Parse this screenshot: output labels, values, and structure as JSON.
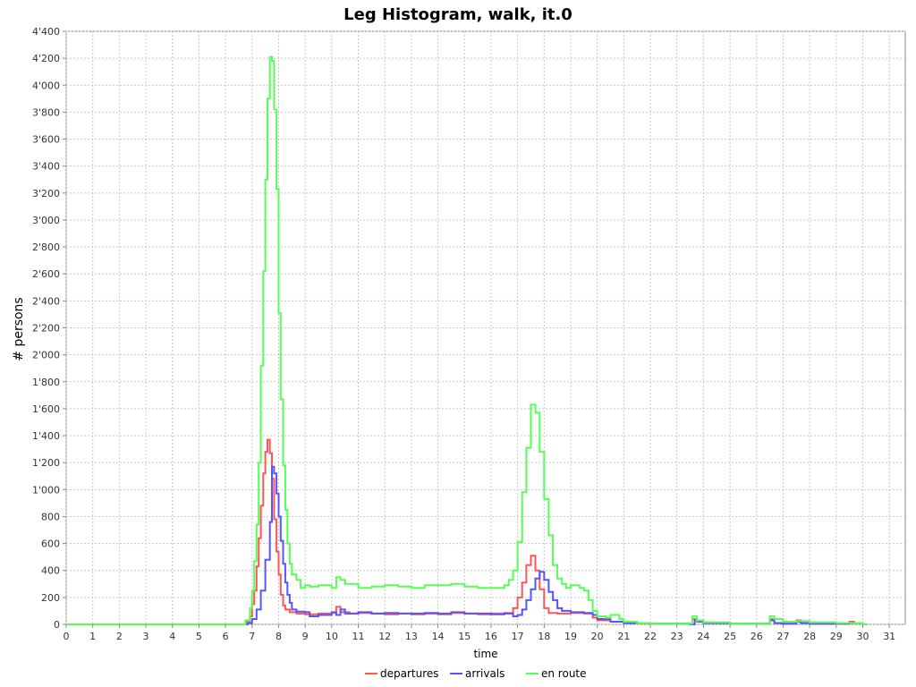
{
  "chart_data": {
    "type": "line",
    "step": true,
    "title": "Leg Histogram, walk, it.0",
    "xlabel": "time",
    "ylabel": "# persons",
    "xlim": [
      0,
      31.6
    ],
    "ylim": [
      0,
      4400
    ],
    "x_ticks": [
      "0",
      "1",
      "2",
      "3",
      "4",
      "5",
      "6",
      "7",
      "8",
      "9",
      "10",
      "11",
      "12",
      "13",
      "14",
      "15",
      "16",
      "17",
      "18",
      "19",
      "20",
      "21",
      "22",
      "23",
      "24",
      "25",
      "26",
      "27",
      "28",
      "29",
      "30",
      "31"
    ],
    "y_ticks": [
      {
        "value": 0,
        "label": "0"
      },
      {
        "value": 200,
        "label": "200"
      },
      {
        "value": 400,
        "label": "400"
      },
      {
        "value": 600,
        "label": "600"
      },
      {
        "value": 800,
        "label": "800"
      },
      {
        "value": 1000,
        "label": "1'000"
      },
      {
        "value": 1200,
        "label": "1'200"
      },
      {
        "value": 1400,
        "label": "1'400"
      },
      {
        "value": 1600,
        "label": "1'600"
      },
      {
        "value": 1800,
        "label": "1'800"
      },
      {
        "value": 2000,
        "label": "2'000"
      },
      {
        "value": 2200,
        "label": "2'200"
      },
      {
        "value": 2400,
        "label": "2'400"
      },
      {
        "value": 2600,
        "label": "2'600"
      },
      {
        "value": 2800,
        "label": "2'800"
      },
      {
        "value": 3000,
        "label": "3'000"
      },
      {
        "value": 3200,
        "label": "3'200"
      },
      {
        "value": 3400,
        "label": "3'400"
      },
      {
        "value": 3600,
        "label": "3'600"
      },
      {
        "value": 3800,
        "label": "3'800"
      },
      {
        "value": 4000,
        "label": "4'000"
      },
      {
        "value": 4200,
        "label": "4'200"
      },
      {
        "value": 4400,
        "label": "4'400"
      }
    ],
    "grid": true,
    "legend_position": "bottom",
    "series": [
      {
        "name": "departures",
        "color": "#ff5555",
        "points": [
          [
            0,
            0
          ],
          [
            6.5,
            0
          ],
          [
            6.75,
            20
          ],
          [
            6.92,
            60
          ],
          [
            7.0,
            150
          ],
          [
            7.08,
            250
          ],
          [
            7.17,
            430
          ],
          [
            7.25,
            640
          ],
          [
            7.33,
            880
          ],
          [
            7.42,
            1120
          ],
          [
            7.5,
            1280
          ],
          [
            7.58,
            1370
          ],
          [
            7.67,
            1270
          ],
          [
            7.75,
            1080
          ],
          [
            7.83,
            780
          ],
          [
            7.92,
            540
          ],
          [
            8.0,
            370
          ],
          [
            8.08,
            220
          ],
          [
            8.17,
            140
          ],
          [
            8.25,
            110
          ],
          [
            8.42,
            90
          ],
          [
            8.67,
            80
          ],
          [
            9.0,
            75
          ],
          [
            9.5,
            80
          ],
          [
            10.0,
            85
          ],
          [
            10.17,
            130
          ],
          [
            10.33,
            90
          ],
          [
            10.67,
            80
          ],
          [
            11.0,
            85
          ],
          [
            11.5,
            80
          ],
          [
            12.0,
            75
          ],
          [
            12.5,
            80
          ],
          [
            13.0,
            75
          ],
          [
            13.5,
            80
          ],
          [
            14.0,
            75
          ],
          [
            14.5,
            85
          ],
          [
            15.0,
            80
          ],
          [
            15.5,
            75
          ],
          [
            16.0,
            80
          ],
          [
            16.5,
            85
          ],
          [
            16.83,
            120
          ],
          [
            17.0,
            200
          ],
          [
            17.17,
            310
          ],
          [
            17.33,
            440
          ],
          [
            17.5,
            510
          ],
          [
            17.67,
            400
          ],
          [
            17.83,
            260
          ],
          [
            18.0,
            120
          ],
          [
            18.17,
            85
          ],
          [
            18.5,
            80
          ],
          [
            19.0,
            85
          ],
          [
            19.5,
            80
          ],
          [
            19.83,
            50
          ],
          [
            20.0,
            30
          ],
          [
            20.5,
            20
          ],
          [
            21.0,
            10
          ],
          [
            22.0,
            5
          ],
          [
            23.5,
            0
          ],
          [
            23.58,
            40
          ],
          [
            23.75,
            20
          ],
          [
            24.0,
            10
          ],
          [
            25.0,
            5
          ],
          [
            26.0,
            5
          ],
          [
            26.5,
            40
          ],
          [
            26.67,
            10
          ],
          [
            27.0,
            5
          ],
          [
            27.5,
            30
          ],
          [
            27.67,
            10
          ],
          [
            28.0,
            5
          ],
          [
            29.0,
            5
          ],
          [
            29.5,
            20
          ],
          [
            29.67,
            10
          ],
          [
            30.0,
            0
          ],
          [
            30.17,
            0
          ]
        ]
      },
      {
        "name": "arrivals",
        "color": "#5555ff",
        "points": [
          [
            0,
            0
          ],
          [
            6.5,
            0
          ],
          [
            6.83,
            10
          ],
          [
            7.0,
            40
          ],
          [
            7.17,
            110
          ],
          [
            7.33,
            250
          ],
          [
            7.5,
            480
          ],
          [
            7.67,
            760
          ],
          [
            7.75,
            1170
          ],
          [
            7.83,
            1120
          ],
          [
            7.92,
            970
          ],
          [
            8.0,
            800
          ],
          [
            8.08,
            620
          ],
          [
            8.17,
            450
          ],
          [
            8.25,
            310
          ],
          [
            8.33,
            220
          ],
          [
            8.42,
            160
          ],
          [
            8.5,
            110
          ],
          [
            8.67,
            95
          ],
          [
            9.0,
            90
          ],
          [
            9.17,
            60
          ],
          [
            9.5,
            70
          ],
          [
            10.0,
            90
          ],
          [
            10.17,
            70
          ],
          [
            10.33,
            110
          ],
          [
            10.5,
            80
          ],
          [
            11.0,
            90
          ],
          [
            11.5,
            80
          ],
          [
            12.0,
            85
          ],
          [
            12.5,
            80
          ],
          [
            13.0,
            80
          ],
          [
            13.5,
            85
          ],
          [
            14.0,
            80
          ],
          [
            14.5,
            90
          ],
          [
            15.0,
            80
          ],
          [
            15.5,
            80
          ],
          [
            16.0,
            75
          ],
          [
            16.5,
            80
          ],
          [
            16.83,
            60
          ],
          [
            17.0,
            70
          ],
          [
            17.17,
            110
          ],
          [
            17.33,
            180
          ],
          [
            17.5,
            260
          ],
          [
            17.67,
            340
          ],
          [
            17.83,
            390
          ],
          [
            18.0,
            330
          ],
          [
            18.17,
            240
          ],
          [
            18.33,
            180
          ],
          [
            18.5,
            120
          ],
          [
            18.67,
            100
          ],
          [
            19.0,
            90
          ],
          [
            19.5,
            85
          ],
          [
            19.83,
            70
          ],
          [
            20.0,
            40
          ],
          [
            20.5,
            20
          ],
          [
            21.0,
            10
          ],
          [
            22.0,
            5
          ],
          [
            23.5,
            0
          ],
          [
            23.67,
            30
          ],
          [
            23.83,
            20
          ],
          [
            24.0,
            10
          ],
          [
            25.0,
            5
          ],
          [
            26.0,
            5
          ],
          [
            26.5,
            30
          ],
          [
            26.67,
            10
          ],
          [
            27.0,
            5
          ],
          [
            27.5,
            20
          ],
          [
            27.67,
            10
          ],
          [
            28.0,
            5
          ],
          [
            29.0,
            5
          ],
          [
            29.5,
            10
          ],
          [
            30.0,
            0
          ],
          [
            30.17,
            0
          ]
        ]
      },
      {
        "name": "en route",
        "color": "#55ff55",
        "points": [
          [
            0,
            0
          ],
          [
            6.5,
            0
          ],
          [
            6.75,
            30
          ],
          [
            6.92,
            120
          ],
          [
            7.0,
            250
          ],
          [
            7.08,
            470
          ],
          [
            7.17,
            740
          ],
          [
            7.25,
            1200
          ],
          [
            7.33,
            1920
          ],
          [
            7.42,
            2620
          ],
          [
            7.5,
            3300
          ],
          [
            7.58,
            3900
          ],
          [
            7.67,
            4210
          ],
          [
            7.75,
            4180
          ],
          [
            7.83,
            3820
          ],
          [
            7.92,
            3230
          ],
          [
            8.0,
            2310
          ],
          [
            8.08,
            1670
          ],
          [
            8.17,
            1180
          ],
          [
            8.25,
            850
          ],
          [
            8.33,
            600
          ],
          [
            8.42,
            450
          ],
          [
            8.5,
            370
          ],
          [
            8.67,
            330
          ],
          [
            8.83,
            270
          ],
          [
            9.0,
            290
          ],
          [
            9.17,
            280
          ],
          [
            9.5,
            290
          ],
          [
            10.0,
            270
          ],
          [
            10.17,
            350
          ],
          [
            10.33,
            330
          ],
          [
            10.5,
            300
          ],
          [
            11.0,
            270
          ],
          [
            11.5,
            280
          ],
          [
            12.0,
            290
          ],
          [
            12.5,
            280
          ],
          [
            13.0,
            270
          ],
          [
            13.5,
            290
          ],
          [
            14.0,
            290
          ],
          [
            14.5,
            300
          ],
          [
            15.0,
            280
          ],
          [
            15.5,
            270
          ],
          [
            16.0,
            270
          ],
          [
            16.5,
            290
          ],
          [
            16.67,
            330
          ],
          [
            16.83,
            400
          ],
          [
            17.0,
            610
          ],
          [
            17.17,
            980
          ],
          [
            17.33,
            1310
          ],
          [
            17.5,
            1630
          ],
          [
            17.67,
            1570
          ],
          [
            17.83,
            1280
          ],
          [
            18.0,
            930
          ],
          [
            18.17,
            660
          ],
          [
            18.33,
            440
          ],
          [
            18.5,
            340
          ],
          [
            18.67,
            300
          ],
          [
            18.83,
            270
          ],
          [
            19.0,
            290
          ],
          [
            19.33,
            270
          ],
          [
            19.5,
            250
          ],
          [
            19.67,
            180
          ],
          [
            19.83,
            100
          ],
          [
            20.0,
            60
          ],
          [
            20.33,
            50
          ],
          [
            20.5,
            70
          ],
          [
            20.83,
            40
          ],
          [
            21.0,
            20
          ],
          [
            21.5,
            10
          ],
          [
            22.0,
            5
          ],
          [
            23.5,
            5
          ],
          [
            23.58,
            60
          ],
          [
            23.75,
            30
          ],
          [
            24.0,
            15
          ],
          [
            25.0,
            5
          ],
          [
            26.0,
            5
          ],
          [
            26.5,
            60
          ],
          [
            26.67,
            40
          ],
          [
            27.0,
            20
          ],
          [
            27.5,
            25
          ],
          [
            28.0,
            15
          ],
          [
            29.0,
            10
          ],
          [
            29.5,
            10
          ],
          [
            30.0,
            0
          ],
          [
            30.17,
            0
          ]
        ]
      }
    ]
  }
}
